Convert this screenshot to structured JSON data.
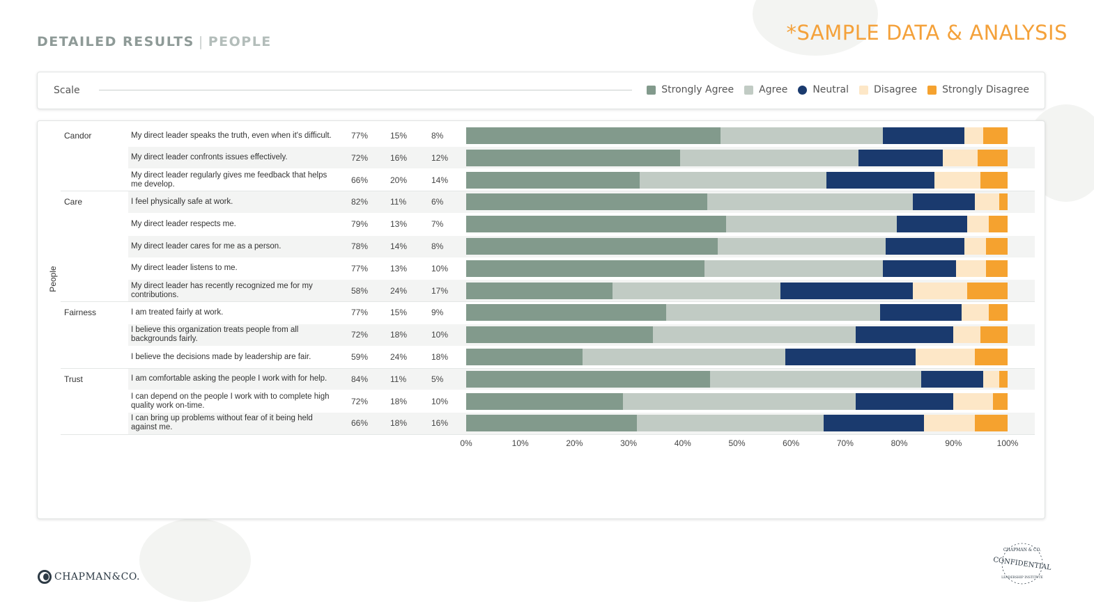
{
  "header": {
    "title": "DETAILED RESULTS",
    "separator": "|",
    "subtitle": "PEOPLE"
  },
  "sample_tag": "*SAMPLE DATA & ANALYSIS",
  "legend": {
    "title": "Scale",
    "items": [
      {
        "label": "Strongly Agree",
        "color": "#829a8c"
      },
      {
        "label": "Agree",
        "color": "#c1cbc4"
      },
      {
        "label": "Neutral",
        "color": "#1a3a6e"
      },
      {
        "label": "Disagree",
        "color": "#fde7c7"
      },
      {
        "label": "Strongly Disagree",
        "color": "#f5a22f"
      }
    ]
  },
  "chart_data": {
    "type": "bar",
    "orientation": "horizontal-stacked-100",
    "dimension_label": "People",
    "groups": [
      "Candor",
      "Care",
      "Fairness",
      "Trust"
    ],
    "series_names": [
      "Strongly Agree",
      "Agree",
      "Neutral",
      "Disagree",
      "Strongly Disagree"
    ],
    "colors": [
      "#829a8c",
      "#c1cbc4",
      "#1a3a6e",
      "#fde7c7",
      "#f5a22f"
    ],
    "rows": [
      {
        "group": "Candor",
        "question": "My direct leader speaks the truth, even when it's difficult.",
        "favorable": "77%",
        "neutral": "15%",
        "unfavorable": "8%",
        "segments": [
          47,
          30,
          15,
          3.5,
          4.5
        ]
      },
      {
        "group": "Candor",
        "question": "My direct leader confronts issues effectively.",
        "favorable": "72%",
        "neutral": "16%",
        "unfavorable": "12%",
        "segments": [
          39.5,
          33,
          15.5,
          6.5,
          5.5
        ]
      },
      {
        "group": "Candor",
        "question": "My direct leader regularly gives me feedback that helps me develop.",
        "favorable": "66%",
        "neutral": "20%",
        "unfavorable": "14%",
        "segments": [
          32,
          34.5,
          20,
          8.5,
          5
        ]
      },
      {
        "group": "Care",
        "question": "I feel physically safe at work.",
        "favorable": "82%",
        "neutral": "11%",
        "unfavorable": "6%",
        "segments": [
          44.5,
          38,
          11.5,
          4.5,
          1.5
        ]
      },
      {
        "group": "Care",
        "question": "My direct leader respects me.",
        "favorable": "79%",
        "neutral": "13%",
        "unfavorable": "7%",
        "segments": [
          48,
          31.5,
          13,
          4,
          3.5
        ]
      },
      {
        "group": "Care",
        "question": "My direct leader cares for me as a person.",
        "favorable": "78%",
        "neutral": "14%",
        "unfavorable": "8%",
        "segments": [
          46.5,
          31,
          14.5,
          4,
          4
        ]
      },
      {
        "group": "Care",
        "question": "My direct leader listens to me.",
        "favorable": "77%",
        "neutral": "13%",
        "unfavorable": "10%",
        "segments": [
          44,
          33,
          13.5,
          5.5,
          4
        ]
      },
      {
        "group": "Care",
        "question": "My direct leader has recently recognized me for my contributions.",
        "favorable": "58%",
        "neutral": "24%",
        "unfavorable": "17%",
        "segments": [
          27,
          31,
          24.5,
          10,
          7.5
        ]
      },
      {
        "group": "Fairness",
        "question": "I am treated fairly at work.",
        "favorable": "77%",
        "neutral": "15%",
        "unfavorable": "9%",
        "segments": [
          37,
          39.5,
          15,
          5,
          3.5
        ]
      },
      {
        "group": "Fairness",
        "question": "I believe this organization treats people from all backgrounds fairly.",
        "favorable": "72%",
        "neutral": "18%",
        "unfavorable": "10%",
        "segments": [
          34.5,
          37.5,
          18,
          5,
          5
        ]
      },
      {
        "group": "Fairness",
        "question": "I believe the decisions made by leadership are fair.",
        "favorable": "59%",
        "neutral": "24%",
        "unfavorable": "18%",
        "segments": [
          21.5,
          37.5,
          24,
          11,
          6
        ]
      },
      {
        "group": "Trust",
        "question": "I am comfortable asking the people I work with for help.",
        "favorable": "84%",
        "neutral": "11%",
        "unfavorable": "5%",
        "segments": [
          45,
          39,
          11.5,
          3,
          1.5
        ]
      },
      {
        "group": "Trust",
        "question": "I can depend on the people I work with to complete high quality work on-time.",
        "favorable": "72%",
        "neutral": "18%",
        "unfavorable": "10%",
        "segments": [
          29,
          43,
          18,
          7.3,
          2.7
        ]
      },
      {
        "group": "Trust",
        "question": "I can bring up problems without fear of it being held against me.",
        "favorable": "66%",
        "neutral": "18%",
        "unfavorable": "16%",
        "segments": [
          31.5,
          34.5,
          18.5,
          9.5,
          6
        ]
      }
    ],
    "x_ticks": [
      "0%",
      "10%",
      "20%",
      "30%",
      "40%",
      "50%",
      "60%",
      "70%",
      "80%",
      "90%",
      "100%"
    ],
    "xlim": [
      0,
      100
    ]
  },
  "logo": {
    "text": "CHAPMAN&CO."
  },
  "seal": {
    "top": "CHAPMAN & CO.",
    "center": "CONFIDENTIAL",
    "bottom": "LEADERSHIP INSTITUTE"
  }
}
